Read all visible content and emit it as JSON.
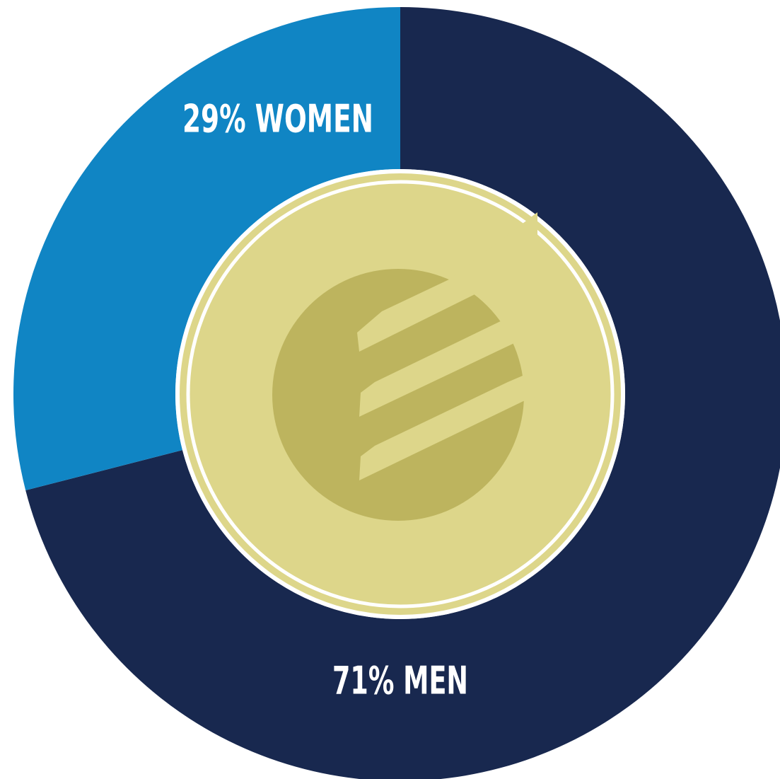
{
  "chart_data": {
    "type": "pie",
    "values": [
      71,
      29
    ],
    "value_labels": [
      "71% MEN",
      "29% WOMEN"
    ],
    "colors": [
      "#18284f",
      "#1085c4"
    ],
    "donut": true
  }
}
